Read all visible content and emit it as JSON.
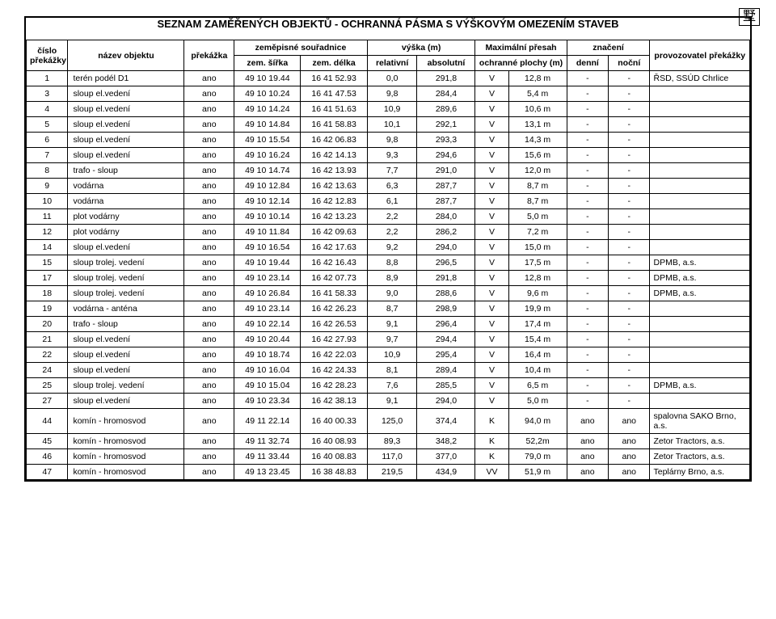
{
  "page_title": "SEZNAM ZAMĚŘENÝCH OBJEKTŮ - OCHRANNÁ PÁSMA S VÝŠKOVÝM OMEZENÍM STAVEB",
  "logo_text": "墅",
  "columns": {
    "cislo": "číslo překážky",
    "nazev": "název objektu",
    "prekazka": "překážka",
    "zem_group": "zeměpisné souřadnice",
    "zem_sirka": "zem. šířka",
    "zem_delka": "zem. délka",
    "vyska_group": "výška (m)",
    "relativni": "relativní",
    "absolutni": "absolutní",
    "max_presah": "Maximální přesah",
    "ochranne": "ochranné plochy (m)",
    "znaceni": "značení",
    "denni": "denní",
    "nocni": "noční",
    "provoz": "provozovatel překážky"
  },
  "rows": [
    {
      "n": "1",
      "name": "terén podél D1",
      "prek": "ano",
      "sirka": "49 10 19.44",
      "delka": "16 41 52.93",
      "rel": "0,0",
      "abs": "291,8",
      "och1": "V",
      "och2": "12,8 m",
      "den": "-",
      "noc": "-",
      "prov": "ŘSD, SSÚD Chrlice"
    },
    {
      "n": "3",
      "name": "sloup el.vedení",
      "prek": "ano",
      "sirka": "49 10 10.24",
      "delka": "16 41 47.53",
      "rel": "9,8",
      "abs": "284,4",
      "och1": "V",
      "och2": "5,4 m",
      "den": "-",
      "noc": "-",
      "prov": ""
    },
    {
      "n": "4",
      "name": "sloup el.vedení",
      "prek": "ano",
      "sirka": "49 10 14.24",
      "delka": "16 41 51.63",
      "rel": "10,9",
      "abs": "289,6",
      "och1": "V",
      "och2": "10,6 m",
      "den": "-",
      "noc": "-",
      "prov": ""
    },
    {
      "n": "5",
      "name": "sloup el.vedení",
      "prek": "ano",
      "sirka": "49 10 14.84",
      "delka": "16 41 58.83",
      "rel": "10,1",
      "abs": "292,1",
      "och1": "V",
      "och2": "13,1 m",
      "den": "-",
      "noc": "-",
      "prov": ""
    },
    {
      "n": "6",
      "name": "sloup el.vedení",
      "prek": "ano",
      "sirka": "49 10 15.54",
      "delka": "16 42 06.83",
      "rel": "9,8",
      "abs": "293,3",
      "och1": "V",
      "och2": "14,3 m",
      "den": "-",
      "noc": "-",
      "prov": ""
    },
    {
      "n": "7",
      "name": "sloup el.vedení",
      "prek": "ano",
      "sirka": "49 10 16.24",
      "delka": "16 42 14.13",
      "rel": "9,3",
      "abs": "294,6",
      "och1": "V",
      "och2": "15,6 m",
      "den": "-",
      "noc": "-",
      "prov": ""
    },
    {
      "n": "8",
      "name": "trafo - sloup",
      "prek": "ano",
      "sirka": "49 10 14.74",
      "delka": "16 42 13.93",
      "rel": "7,7",
      "abs": "291,0",
      "och1": "V",
      "och2": "12,0 m",
      "den": "-",
      "noc": "-",
      "prov": ""
    },
    {
      "n": "9",
      "name": "vodárna",
      "prek": "ano",
      "sirka": "49 10 12.84",
      "delka": "16 42 13.63",
      "rel": "6,3",
      "abs": "287,7",
      "och1": "V",
      "och2": "8,7 m",
      "den": "-",
      "noc": "-",
      "prov": ""
    },
    {
      "n": "10",
      "name": "vodárna",
      "prek": "ano",
      "sirka": "49 10 12.14",
      "delka": "16 42 12.83",
      "rel": "6,1",
      "abs": "287,7",
      "och1": "V",
      "och2": "8,7 m",
      "den": "-",
      "noc": "-",
      "prov": ""
    },
    {
      "n": "11",
      "name": "plot vodárny",
      "prek": "ano",
      "sirka": "49 10 10.14",
      "delka": "16 42 13.23",
      "rel": "2,2",
      "abs": "284,0",
      "och1": "V",
      "och2": "5,0 m",
      "den": "-",
      "noc": "-",
      "prov": ""
    },
    {
      "n": "12",
      "name": "plot vodárny",
      "prek": "ano",
      "sirka": "49 10 11.84",
      "delka": "16 42 09.63",
      "rel": "2,2",
      "abs": "286,2",
      "och1": "V",
      "och2": "7,2 m",
      "den": "-",
      "noc": "-",
      "prov": ""
    },
    {
      "n": "14",
      "name": "sloup el.vedení",
      "prek": "ano",
      "sirka": "49 10 16.54",
      "delka": "16 42 17.63",
      "rel": "9,2",
      "abs": "294,0",
      "och1": "V",
      "och2": "15,0 m",
      "den": "-",
      "noc": "-",
      "prov": ""
    },
    {
      "n": "15",
      "name": "sloup trolej. vedení",
      "prek": "ano",
      "sirka": "49 10 19.44",
      "delka": "16 42 16.43",
      "rel": "8,8",
      "abs": "296,5",
      "och1": "V",
      "och2": "17,5 m",
      "den": "-",
      "noc": "-",
      "prov": "DPMB, a.s."
    },
    {
      "n": "17",
      "name": "sloup trolej. vedení",
      "prek": "ano",
      "sirka": "49 10 23.14",
      "delka": "16 42 07.73",
      "rel": "8,9",
      "abs": "291,8",
      "och1": "V",
      "och2": "12,8 m",
      "den": "-",
      "noc": "-",
      "prov": "DPMB, a.s."
    },
    {
      "n": "18",
      "name": "sloup trolej. vedení",
      "prek": "ano",
      "sirka": "49 10 26.84",
      "delka": "16 41 58.33",
      "rel": "9,0",
      "abs": "288,6",
      "och1": "V",
      "och2": "9,6 m",
      "den": "-",
      "noc": "-",
      "prov": "DPMB, a.s."
    },
    {
      "n": "19",
      "name": "vodárna - anténa",
      "prek": "ano",
      "sirka": "49 10 23.14",
      "delka": "16 42 26.23",
      "rel": "8,7",
      "abs": "298,9",
      "och1": "V",
      "och2": "19,9 m",
      "den": "-",
      "noc": "-",
      "prov": ""
    },
    {
      "n": "20",
      "name": "trafo - sloup",
      "prek": "ano",
      "sirka": "49 10 22.14",
      "delka": "16 42 26.53",
      "rel": "9,1",
      "abs": "296,4",
      "och1": "V",
      "och2": "17,4 m",
      "den": "-",
      "noc": "-",
      "prov": ""
    },
    {
      "n": "21",
      "name": "sloup el.vedení",
      "prek": "ano",
      "sirka": "49 10 20.44",
      "delka": "16 42 27.93",
      "rel": "9,7",
      "abs": "294,4",
      "och1": "V",
      "och2": "15,4 m",
      "den": "-",
      "noc": "-",
      "prov": ""
    },
    {
      "n": "22",
      "name": "sloup el.vedení",
      "prek": "ano",
      "sirka": "49 10 18.74",
      "delka": "16 42 22.03",
      "rel": "10,9",
      "abs": "295,4",
      "och1": "V",
      "och2": "16,4 m",
      "den": "-",
      "noc": "-",
      "prov": ""
    },
    {
      "n": "24",
      "name": "sloup el.vedení",
      "prek": "ano",
      "sirka": "49 10 16.04",
      "delka": "16 42 24.33",
      "rel": "8,1",
      "abs": "289,4",
      "och1": "V",
      "och2": "10,4 m",
      "den": "-",
      "noc": "-",
      "prov": ""
    },
    {
      "n": "25",
      "name": "sloup trolej. vedení",
      "prek": "ano",
      "sirka": "49 10 15.04",
      "delka": "16 42 28.23",
      "rel": "7,6",
      "abs": "285,5",
      "och1": "V",
      "och2": "6,5 m",
      "den": "-",
      "noc": "-",
      "prov": "DPMB, a.s."
    },
    {
      "n": "27",
      "name": "sloup el.vedení",
      "prek": "ano",
      "sirka": "49 10 23.34",
      "delka": "16 42 38.13",
      "rel": "9,1",
      "abs": "294,0",
      "och1": "V",
      "och2": "5,0 m",
      "den": "-",
      "noc": "-",
      "prov": ""
    },
    {
      "n": "44",
      "name": "komín - hromosvod",
      "prek": "ano",
      "sirka": "49 11 22.14",
      "delka": "16 40 00.33",
      "rel": "125,0",
      "abs": "374,4",
      "och1": "K",
      "och2": "94,0 m",
      "den": "ano",
      "noc": "ano",
      "prov": "spalovna SAKO Brno, a.s."
    },
    {
      "n": "45",
      "name": "komín - hromosvod",
      "prek": "ano",
      "sirka": "49 11 32.74",
      "delka": "16 40 08.93",
      "rel": "89,3",
      "abs": "348,2",
      "och1": "K",
      "och2": "52,2m",
      "den": "ano",
      "noc": "ano",
      "prov": "Zetor Tractors, a.s."
    },
    {
      "n": "46",
      "name": "komín - hromosvod",
      "prek": "ano",
      "sirka": "49 11 33.44",
      "delka": "16 40 08.83",
      "rel": "117,0",
      "abs": "377,0",
      "och1": "K",
      "och2": "79,0 m",
      "den": "ano",
      "noc": "ano",
      "prov": "Zetor Tractors, a.s."
    },
    {
      "n": "47",
      "name": "komín - hromosvod",
      "prek": "ano",
      "sirka": "49 13 23.45",
      "delka": "16 38 48.83",
      "rel": "219,5",
      "abs": "434,9",
      "och1": "VV",
      "och2": "51,9 m",
      "den": "ano",
      "noc": "ano",
      "prov": "Teplárny Brno, a.s."
    }
  ],
  "col_widths": {
    "n": "5%",
    "name": "14%",
    "prek": "6%",
    "sirka": "8%",
    "delka": "8%",
    "rel": "6%",
    "abs": "7%",
    "och1": "4%",
    "och2": "7%",
    "den": "5%",
    "noc": "5%",
    "prov": "12%"
  },
  "styling": {
    "bg": "#ffffff",
    "border": "#000000",
    "font": "Arial",
    "fontsize_body": 10.5,
    "fontsize_title": 13
  }
}
